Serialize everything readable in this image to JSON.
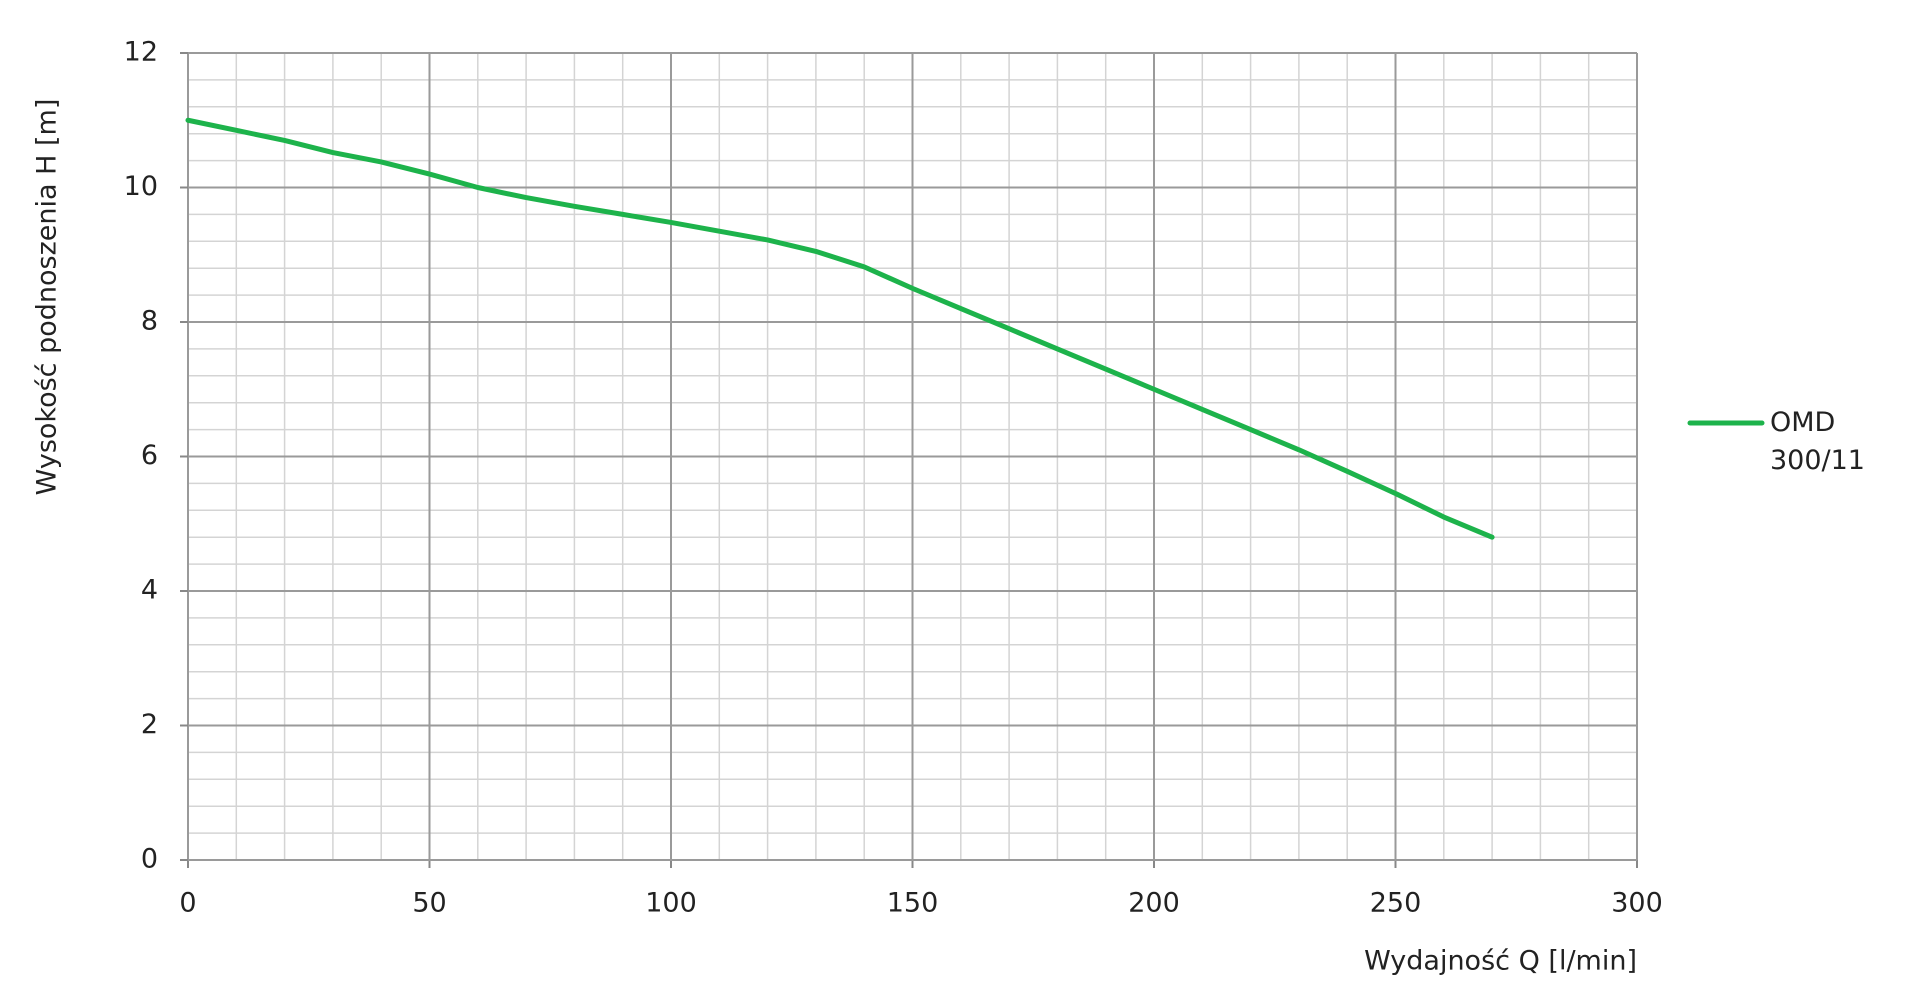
{
  "chart_data": {
    "type": "line",
    "xlabel": "Wydajność Q [l/min]",
    "ylabel": "Wysokość podnoszenia H [m]",
    "x": [
      0,
      10,
      20,
      30,
      40,
      50,
      60,
      70,
      80,
      90,
      100,
      110,
      120,
      130,
      140,
      150,
      160,
      170,
      180,
      190,
      200,
      210,
      220,
      230,
      240,
      250,
      260,
      270
    ],
    "series": [
      {
        "name": "OMD 300/11",
        "color": "#1db34b",
        "values": [
          11,
          10.85,
          10.7,
          10.52,
          10.38,
          10.2,
          10.0,
          9.85,
          9.72,
          9.6,
          9.48,
          9.35,
          9.22,
          9.05,
          8.82,
          8.5,
          8.2,
          7.9,
          7.6,
          7.3,
          7.0,
          6.7,
          6.4,
          6.1,
          5.78,
          5.45,
          5.1,
          4.8
        ]
      }
    ],
    "xlim": [
      0,
      300
    ],
    "xticks": [
      0,
      50,
      100,
      150,
      200,
      250,
      300
    ],
    "ylim": [
      0,
      12
    ],
    "yticks": [
      0,
      2,
      4,
      6,
      8,
      10,
      12
    ],
    "grid": true,
    "minor_step": {
      "x": 10,
      "y": 0.4
    },
    "legend": "right"
  }
}
